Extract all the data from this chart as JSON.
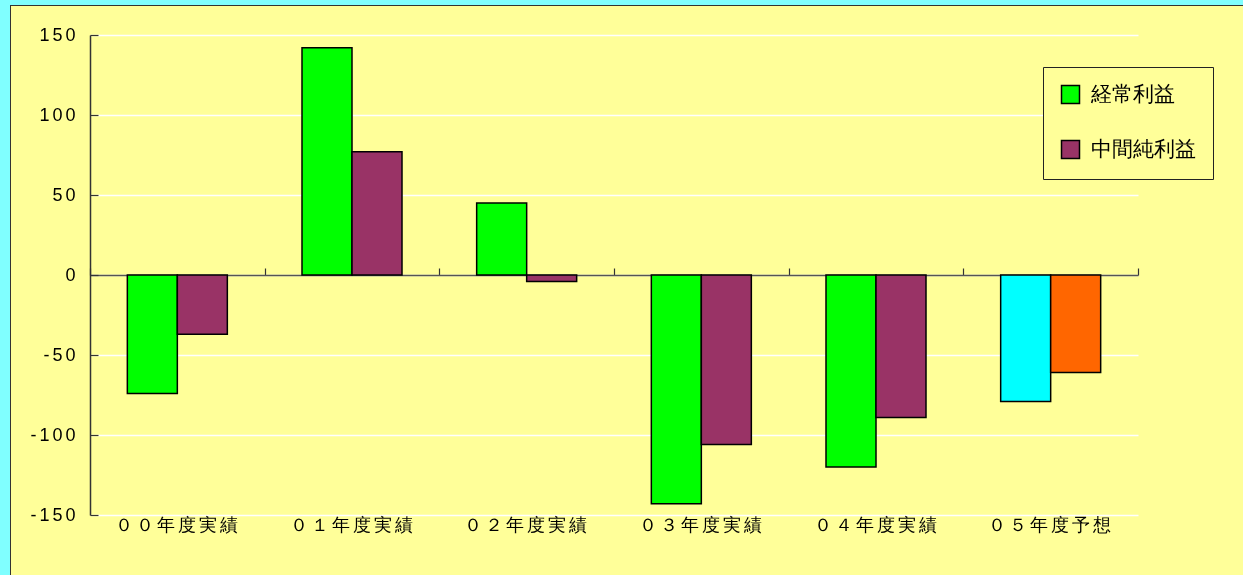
{
  "chart_data": {
    "type": "bar",
    "categories": [
      "００年度実績",
      "０１年度実績",
      "０２年度実績",
      "０３年度実績",
      "０４年度実績",
      "０５年度予想"
    ],
    "series": [
      {
        "name": "経常利益",
        "color": "#00ff00",
        "colors": [
          "#00ff00",
          "#00ff00",
          "#00ff00",
          "#00ff00",
          "#00ff00",
          "#00ffff"
        ],
        "values": [
          -74,
          142,
          45,
          -143,
          -120,
          -79
        ]
      },
      {
        "name": "中間純利益",
        "color": "#993366",
        "colors": [
          "#993366",
          "#993366",
          "#993366",
          "#993366",
          "#993366",
          "#ff6600"
        ],
        "values": [
          -37,
          77,
          -4,
          -106,
          -89,
          -61
        ]
      }
    ],
    "ylim": [
      -150,
      150
    ],
    "yticks": [
      -150,
      -100,
      -50,
      0,
      50,
      100,
      150
    ],
    "grid": "y",
    "legend": "top right"
  }
}
